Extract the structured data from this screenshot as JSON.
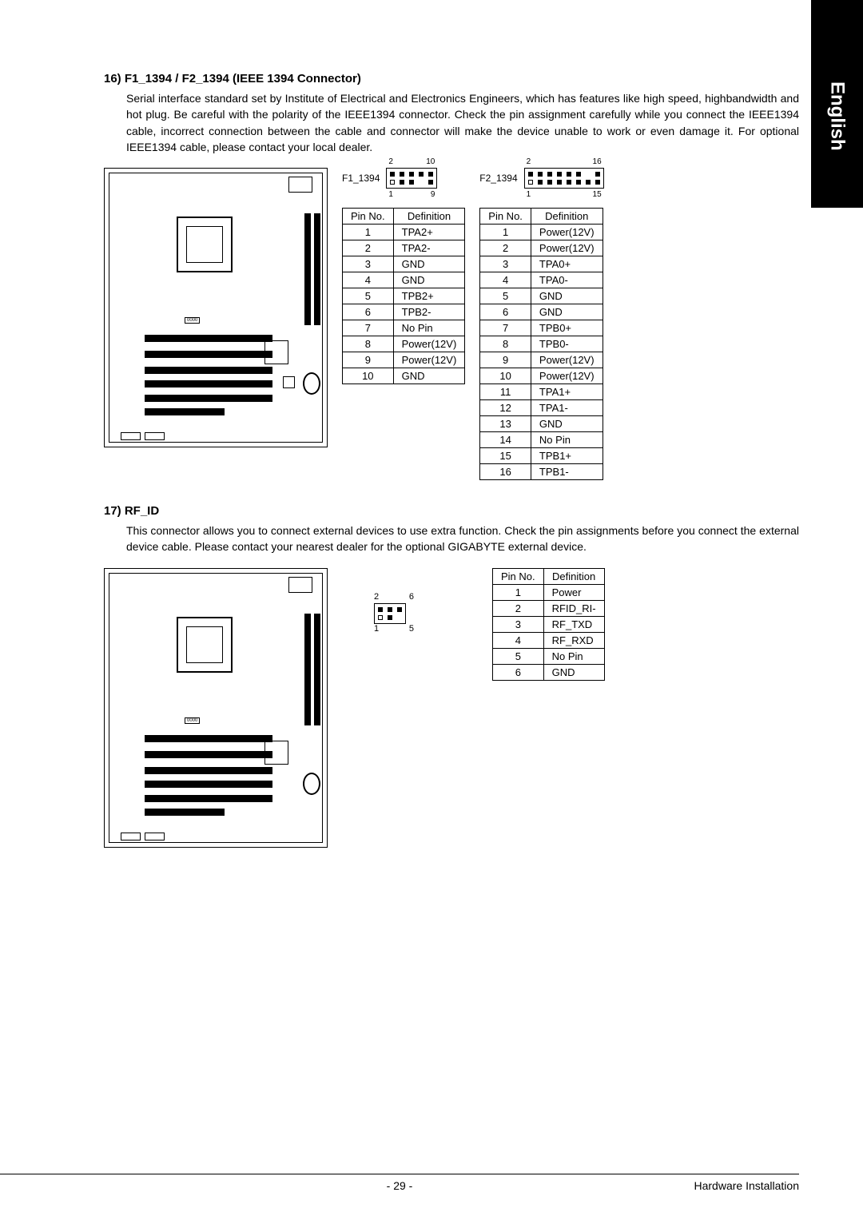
{
  "sideTab": "English",
  "section16": {
    "heading": "16)  F1_1394 / F2_1394 (IEEE 1394 Connector)",
    "body": "Serial interface standard set by Institute of Electrical and Electronics Engineers, which has features like high speed, highbandwidth and hot plug. Be careful with the polarity of the IEEE1394 connector. Check the pin assignment carefully while you connect the IEEE1394 cable, incorrect connection between the cable and connector will make the device unable to work or even damage it. For optional IEEE1394 cable, please contact your local dealer.",
    "f1": {
      "label": "F1_1394",
      "topNums": [
        "2",
        "10"
      ],
      "botNums": [
        "1",
        "9"
      ],
      "headers": [
        "Pin No.",
        "Definition"
      ],
      "rows": [
        [
          "1",
          "TPA2+"
        ],
        [
          "2",
          "TPA2-"
        ],
        [
          "3",
          "GND"
        ],
        [
          "4",
          "GND"
        ],
        [
          "5",
          "TPB2+"
        ],
        [
          "6",
          "TPB2-"
        ],
        [
          "7",
          "No Pin"
        ],
        [
          "8",
          "Power(12V)"
        ],
        [
          "9",
          "Power(12V)"
        ],
        [
          "10",
          "GND"
        ]
      ]
    },
    "f2": {
      "label": "F2_1394",
      "topNums": [
        "2",
        "16"
      ],
      "botNums": [
        "1",
        "15"
      ],
      "headers": [
        "Pin No.",
        "Definition"
      ],
      "rows": [
        [
          "1",
          "Power(12V)"
        ],
        [
          "2",
          "Power(12V)"
        ],
        [
          "3",
          "TPA0+"
        ],
        [
          "4",
          "TPA0-"
        ],
        [
          "5",
          "GND"
        ],
        [
          "6",
          "GND"
        ],
        [
          "7",
          "TPB0+"
        ],
        [
          "8",
          "TPB0-"
        ],
        [
          "9",
          "Power(12V)"
        ],
        [
          "10",
          "Power(12V)"
        ],
        [
          "11",
          "TPA1+"
        ],
        [
          "12",
          "TPA1-"
        ],
        [
          "13",
          "GND"
        ],
        [
          "14",
          "No Pin"
        ],
        [
          "15",
          "TPB1+"
        ],
        [
          "16",
          "TPB1-"
        ]
      ]
    }
  },
  "section17": {
    "heading": "17)  RF_ID",
    "body": "This connector allows you to connect external devices to use extra function. Check the pin assignments before you connect the external device cable. Please contact your nearest dealer for the optional GIGABYTE external device.",
    "pinNums": {
      "tl": "2",
      "tr": "6",
      "bl": "1",
      "br": "5"
    },
    "headers": [
      "Pin No.",
      "Definition"
    ],
    "rows": [
      [
        "1",
        "Power"
      ],
      [
        "2",
        "RFID_RI-"
      ],
      [
        "3",
        "RF_TXD"
      ],
      [
        "4",
        "RF_RXD"
      ],
      [
        "5",
        "No Pin"
      ],
      [
        "6",
        "GND"
      ]
    ]
  },
  "footer": {
    "page": "- 29 -",
    "right": "Hardware Installation"
  }
}
